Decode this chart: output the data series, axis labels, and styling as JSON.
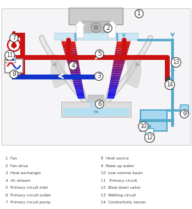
{
  "bg_color": "#ffffff",
  "diagram_bg": "#f8f8f8",
  "legend_items": [
    "1  Fan",
    "2  Fan drive",
    "3  Heat exchanger",
    "4  Air stream",
    "5  Primary circuit inlet",
    "6  Primary circuit outlet",
    "7  Primary circuit pump",
    "8  Heat source",
    "9  Make up water",
    "10  Low volume basin",
    "11   Primary circuit",
    "12  Blow down valve",
    "13  Wetting circuit",
    "14  Conductivity sensor"
  ],
  "fig_width": 2.76,
  "fig_height": 3.0,
  "dpi": 100
}
